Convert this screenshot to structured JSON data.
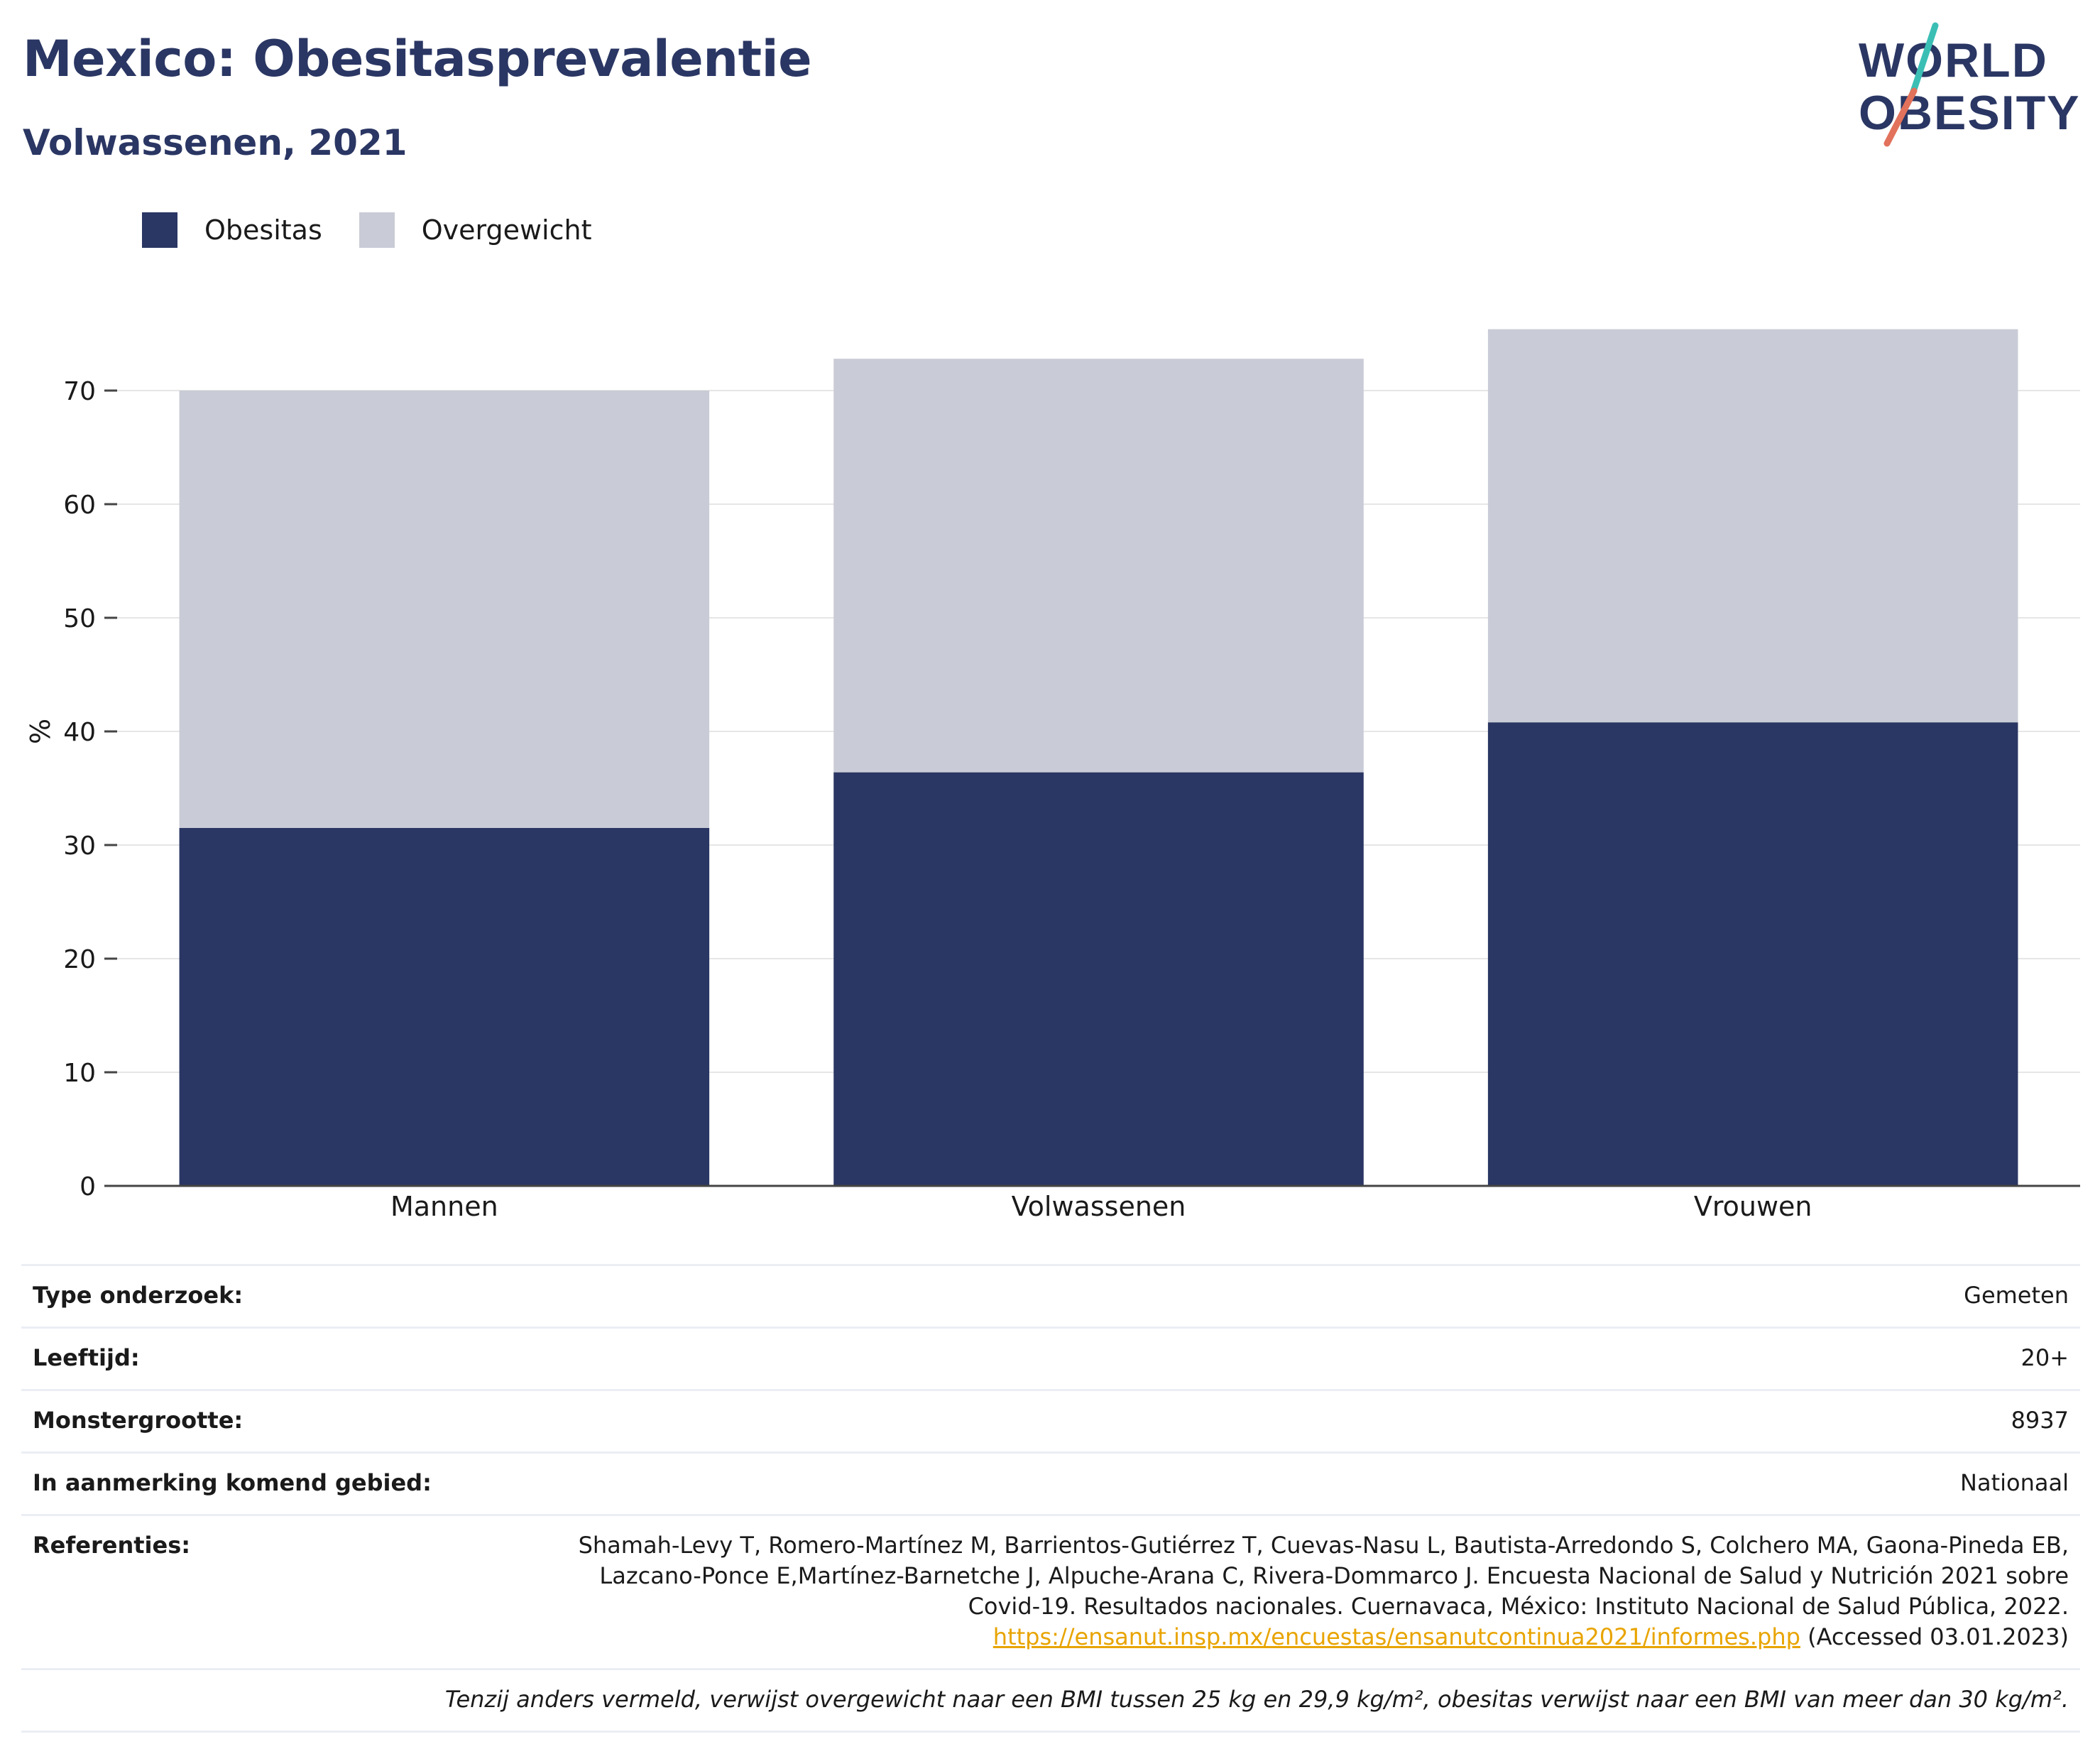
{
  "header": {
    "title": "Mexico: Obesitasprevalentie",
    "subtitle": "Volwassenen, 2021"
  },
  "logo": {
    "line1": "WORLD",
    "line2": "OBESITY",
    "colors": {
      "text": "#2a3663",
      "slash_top": "#3bbfb5",
      "slash_bottom": "#e2725b"
    }
  },
  "legend": {
    "items": [
      {
        "label": "Obesitas",
        "color": "#2a3663"
      },
      {
        "label": "Overgewicht",
        "color": "#c9cbd6"
      }
    ]
  },
  "chart_data": {
    "type": "bar",
    "stacked": true,
    "categories": [
      "Mannen",
      "Volwassenen",
      "Vrouwen"
    ],
    "series": [
      {
        "name": "Obesitas",
        "color": "#2a3663",
        "values": [
          31.5,
          36.4,
          40.8
        ]
      },
      {
        "name": "Overgewicht",
        "color": "#c9cbd6",
        "values": [
          38.5,
          36.4,
          34.6
        ]
      }
    ],
    "ylabel": "%",
    "yticks": [
      0,
      10,
      20,
      30,
      40,
      50,
      60,
      70
    ],
    "ylim": [
      0,
      80
    ],
    "grid": true,
    "legend_position": "top-left"
  },
  "info": {
    "rows": [
      {
        "label": "Type onderzoek:",
        "value": "Gemeten"
      },
      {
        "label": "Leeftijd:",
        "value": "20+"
      },
      {
        "label": "Monstergrootte:",
        "value": "8937"
      },
      {
        "label": "In aanmerking komend gebied:",
        "value": "Nationaal"
      }
    ],
    "references": {
      "label": "Referenties:",
      "line1": "Shamah-Levy T, Romero-Martínez M, Barrientos-Gutiérrez T, Cuevas-Nasu L, Bautista-Arredondo S, Colchero MA, Gaona-Pineda EB,",
      "line2": "Lazcano-Ponce E,Martínez-Barnetche J, Alpuche-Arana C, Rivera-Dommarco J. Encuesta Nacional de Salud y Nutrición 2021 sobre",
      "line3": "Covid-19. Resultados nacionales. Cuernavaca, México: Instituto Nacional de Salud Pública, 2022.",
      "link": "https://ensanut.insp.mx/encuestas/ensanutcontinua2021/informes.php",
      "accessed": "(Accessed 03.01.2023)"
    },
    "footnote": "Tenzij anders vermeld, verwijst overgewicht naar een BMI tussen 25 kg en 29,9 kg/m², obesitas verwijst naar een BMI van meer dan 30 kg/m²."
  }
}
